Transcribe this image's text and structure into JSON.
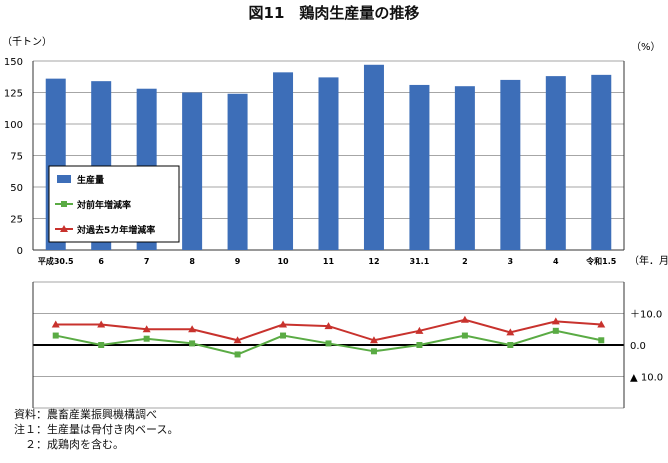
{
  "title": "図11　鶏肉生産量の推移",
  "notes": [
    "資料：農畜産業振興機構調べ",
    "注１：生産量は骨付き肉ベース。",
    "　２：成鶏肉を含む。"
  ],
  "colors": {
    "bar": "#3d6eb8",
    "yoy": "#5aab44",
    "vs5yr": "#c8322d",
    "grid": "#a6a6a6"
  },
  "chart_data": [
    {
      "type": "bar",
      "ylabel": "（千トン）",
      "xlabel": "（年．月）",
      "ylim": [
        0,
        150
      ],
      "yticks": [
        0,
        25,
        50,
        75,
        100,
        125,
        150
      ],
      "categories": [
        "平成30.5",
        "6",
        "7",
        "8",
        "9",
        "10",
        "11",
        "12",
        "31.1",
        "2",
        "3",
        "4",
        "令和1.5"
      ],
      "series": [
        {
          "name": "生産量",
          "values": [
            136,
            134,
            128,
            125,
            124,
            141,
            137,
            147,
            131,
            130,
            135,
            138,
            139
          ]
        }
      ],
      "legend": [
        "生産量",
        "対前年増減率",
        "対過去5カ年増減率"
      ],
      "legend_position": "bottom-left"
    },
    {
      "type": "line",
      "ylabel": "（%）",
      "ylim": [
        -20,
        20
      ],
      "yticks": [
        10,
        0,
        -10
      ],
      "yticklabels": [
        "＋10.0",
        "0.0",
        "▲ 10.0"
      ],
      "categories": [
        "平成30.5",
        "6",
        "7",
        "8",
        "9",
        "10",
        "11",
        "12",
        "31.1",
        "2",
        "3",
        "4",
        "令和1.5"
      ],
      "series": [
        {
          "name": "対前年増減率",
          "values": [
            3,
            0,
            2,
            0.5,
            -3,
            3,
            0.5,
            -2,
            0,
            3,
            0,
            4.5,
            1.5
          ]
        },
        {
          "name": "対過去5カ年増減率",
          "values": [
            6.5,
            6.5,
            5,
            5,
            1.5,
            6.5,
            6,
            1.5,
            4.5,
            8,
            4,
            7.5,
            6.5
          ]
        }
      ]
    }
  ]
}
